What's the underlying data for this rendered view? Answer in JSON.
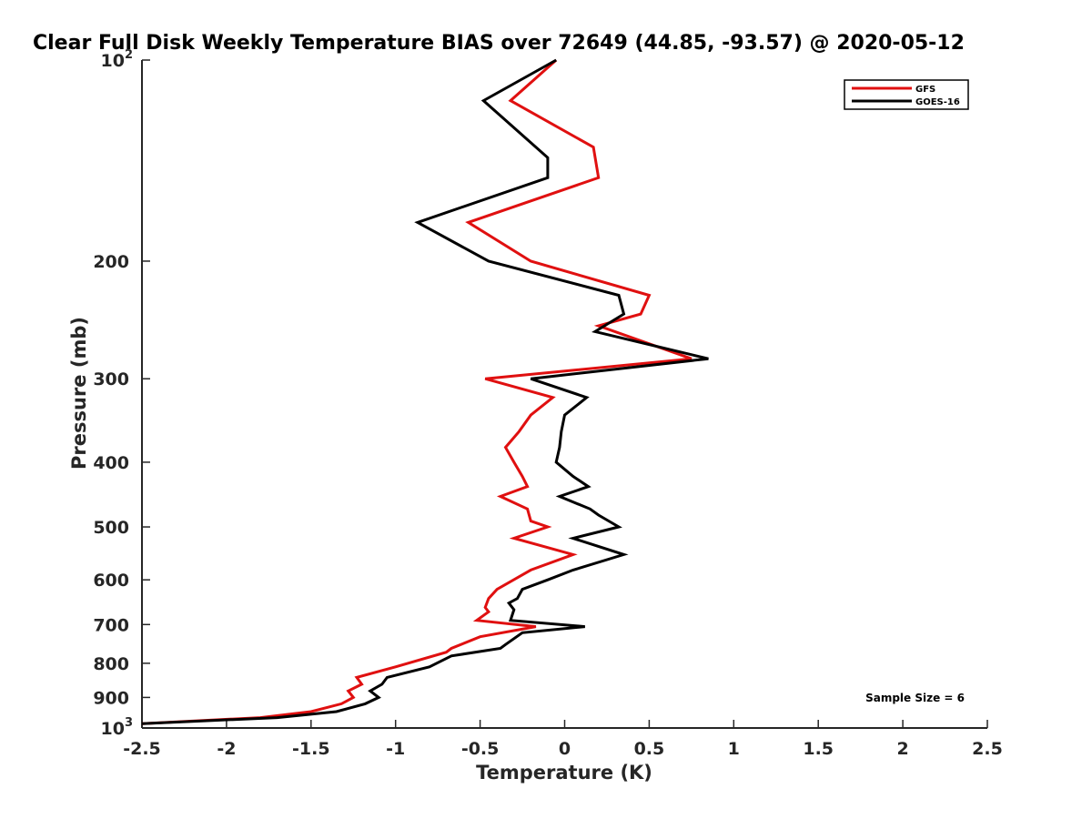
{
  "chart_data": {
    "type": "line",
    "title": "Clear Full Disk Weekly Temperature BIAS over 72649 (44.85, -93.57) @ 2020-05-12",
    "xlabel": "Temperature (K)",
    "ylabel": "Pressure (mb)",
    "xlim": [
      -2.5,
      2.5
    ],
    "ylim": [
      100,
      1000
    ],
    "y_scale": "log",
    "y_reversed": true,
    "xticks": [
      {
        "value": -2.5,
        "label": "-2.5"
      },
      {
        "value": -2,
        "label": "-2"
      },
      {
        "value": -1.5,
        "label": "-1.5"
      },
      {
        "value": -1,
        "label": "-1"
      },
      {
        "value": -0.5,
        "label": "-0.5"
      },
      {
        "value": 0,
        "label": "0"
      },
      {
        "value": 0.5,
        "label": "0.5"
      },
      {
        "value": 1,
        "label": "1"
      },
      {
        "value": 1.5,
        "label": "1.5"
      },
      {
        "value": 2,
        "label": "2"
      },
      {
        "value": 2.5,
        "label": "2.5"
      }
    ],
    "yticks": [
      {
        "value": 100,
        "label": "10",
        "sup": "2"
      },
      {
        "value": 200,
        "label": "200",
        "sup": ""
      },
      {
        "value": 300,
        "label": "300",
        "sup": ""
      },
      {
        "value": 400,
        "label": "400",
        "sup": ""
      },
      {
        "value": 500,
        "label": "500",
        "sup": ""
      },
      {
        "value": 600,
        "label": "600",
        "sup": ""
      },
      {
        "value": 700,
        "label": "700",
        "sup": ""
      },
      {
        "value": 800,
        "label": "800",
        "sup": ""
      },
      {
        "value": 900,
        "label": "900",
        "sup": ""
      },
      {
        "value": 1000,
        "label": "10",
        "sup": "3"
      }
    ],
    "legend_position": "top-right",
    "grid": false,
    "annotation": "Sample Size = 6",
    "series": [
      {
        "name": "GFS",
        "color": "#e01010",
        "points": [
          [
            -0.05,
            100
          ],
          [
            -0.32,
            115
          ],
          [
            0.17,
            135
          ],
          [
            0.2,
            150
          ],
          [
            -0.57,
            175
          ],
          [
            -0.2,
            200
          ],
          [
            0.5,
            225
          ],
          [
            0.45,
            240
          ],
          [
            0.2,
            250
          ],
          [
            0.75,
            280
          ],
          [
            -0.47,
            300
          ],
          [
            -0.07,
            320
          ],
          [
            -0.2,
            340
          ],
          [
            -0.27,
            360
          ],
          [
            -0.35,
            380
          ],
          [
            -0.3,
            400
          ],
          [
            -0.25,
            420
          ],
          [
            -0.22,
            435
          ],
          [
            -0.38,
            450
          ],
          [
            -0.22,
            470
          ],
          [
            -0.2,
            490
          ],
          [
            -0.1,
            500
          ],
          [
            -0.3,
            520
          ],
          [
            0.05,
            550
          ],
          [
            -0.2,
            580
          ],
          [
            -0.4,
            620
          ],
          [
            -0.45,
            640
          ],
          [
            -0.47,
            660
          ],
          [
            -0.45,
            670
          ],
          [
            -0.52,
            690
          ],
          [
            -0.17,
            705
          ],
          [
            -0.5,
            730
          ],
          [
            -0.67,
            760
          ],
          [
            -0.7,
            770
          ],
          [
            -1.0,
            810
          ],
          [
            -1.23,
            840
          ],
          [
            -1.2,
            860
          ],
          [
            -1.28,
            880
          ],
          [
            -1.25,
            900
          ],
          [
            -1.32,
            920
          ],
          [
            -1.5,
            945
          ],
          [
            -1.8,
            965
          ],
          [
            -2.5,
            985
          ]
        ]
      },
      {
        "name": "GOES-16",
        "color": "#000000",
        "points": [
          [
            -0.05,
            100
          ],
          [
            -0.48,
            115
          ],
          [
            -0.1,
            140
          ],
          [
            -0.1,
            150
          ],
          [
            -0.87,
            175
          ],
          [
            -0.45,
            200
          ],
          [
            0.32,
            225
          ],
          [
            0.35,
            240
          ],
          [
            0.18,
            255
          ],
          [
            0.85,
            280
          ],
          [
            -0.2,
            300
          ],
          [
            0.13,
            320
          ],
          [
            0.0,
            340
          ],
          [
            -0.02,
            360
          ],
          [
            -0.03,
            380
          ],
          [
            -0.05,
            400
          ],
          [
            0.05,
            420
          ],
          [
            0.14,
            435
          ],
          [
            -0.03,
            450
          ],
          [
            0.15,
            470
          ],
          [
            0.2,
            480
          ],
          [
            0.32,
            500
          ],
          [
            0.05,
            520
          ],
          [
            0.35,
            550
          ],
          [
            0.05,
            580
          ],
          [
            -0.1,
            600
          ],
          [
            -0.25,
            620
          ],
          [
            -0.28,
            640
          ],
          [
            -0.33,
            650
          ],
          [
            -0.3,
            665
          ],
          [
            -0.32,
            690
          ],
          [
            0.12,
            705
          ],
          [
            -0.25,
            720
          ],
          [
            -0.35,
            750
          ],
          [
            -0.38,
            760
          ],
          [
            -0.67,
            780
          ],
          [
            -0.8,
            810
          ],
          [
            -1.05,
            840
          ],
          [
            -1.08,
            860
          ],
          [
            -1.15,
            880
          ],
          [
            -1.1,
            900
          ],
          [
            -1.18,
            920
          ],
          [
            -1.35,
            945
          ],
          [
            -1.7,
            965
          ],
          [
            -2.5,
            985
          ]
        ]
      }
    ]
  }
}
